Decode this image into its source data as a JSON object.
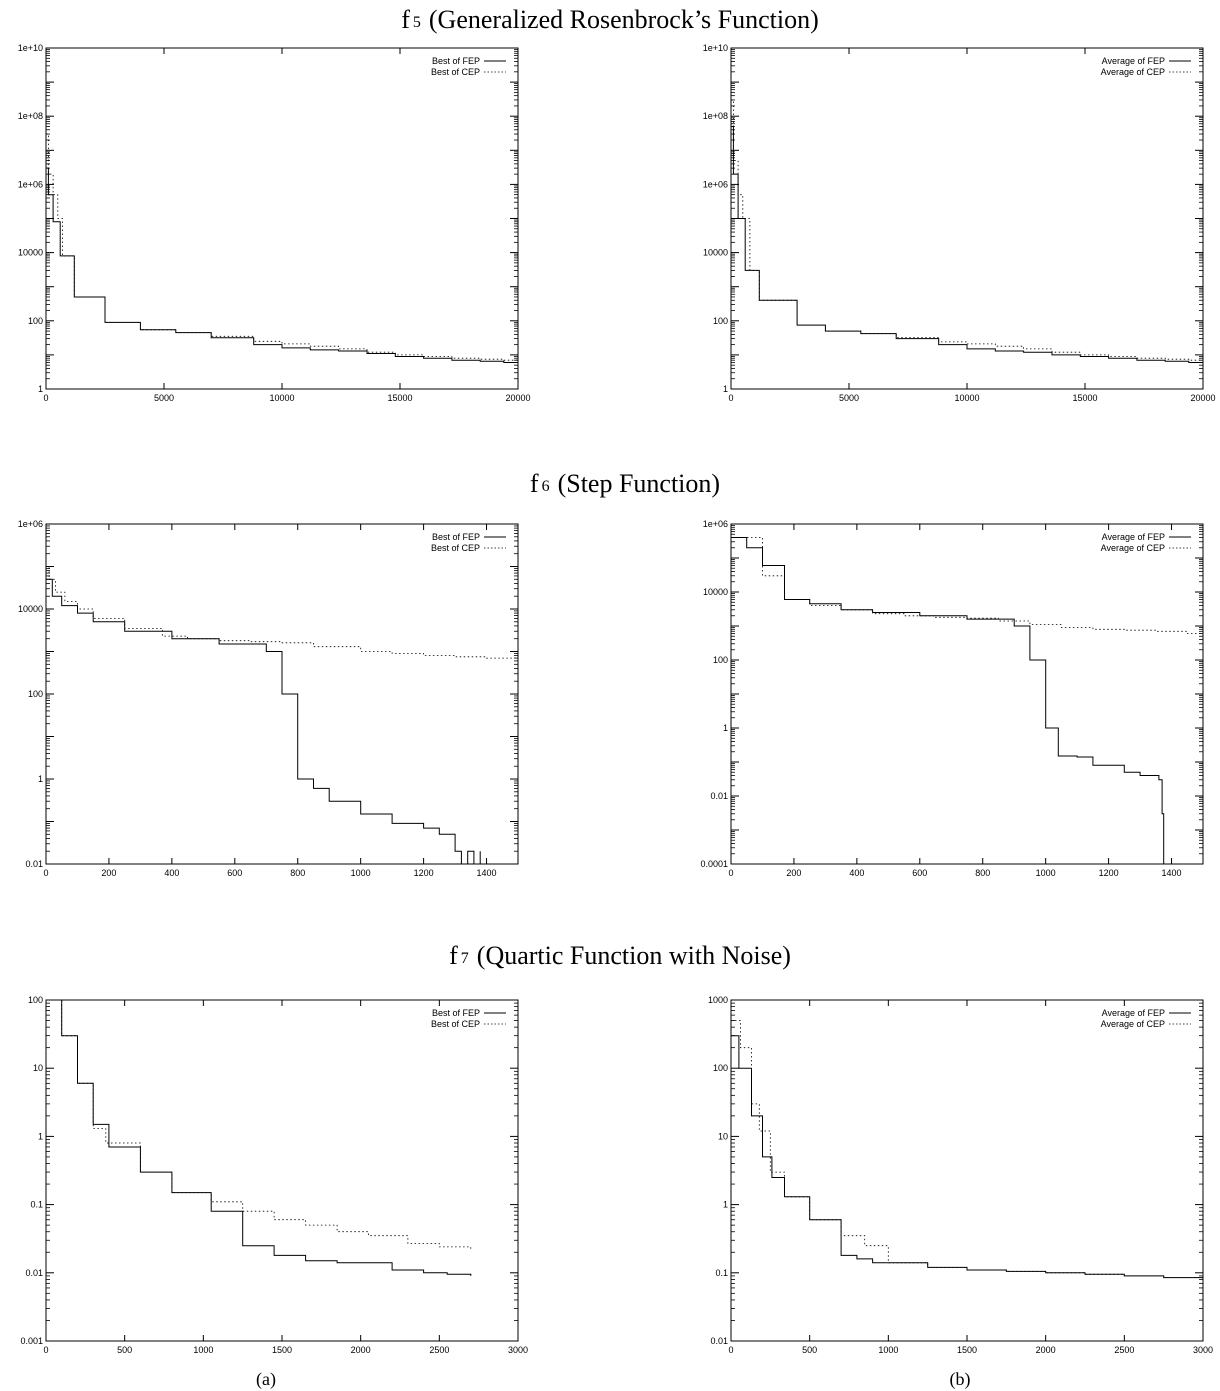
{
  "rows": [
    {
      "function_id": "f",
      "function_sub": "5",
      "function_name": "(Generalized Rosenbrock’s Function)"
    },
    {
      "function_id": "f",
      "function_sub": "6",
      "function_name": "(Step Function)"
    },
    {
      "function_id": "f",
      "function_sub": "7",
      "function_name": "(Quartic Function with Noise)"
    }
  ],
  "captions": [
    "(a)",
    "(b)"
  ],
  "chart_data": [
    {
      "type": "line",
      "panel": "f5-a",
      "xscale": "linear",
      "yscale": "log",
      "xlim": [
        0,
        20000
      ],
      "ylim": [
        1,
        10000000000.0
      ],
      "xticks": [
        0,
        5000,
        10000,
        15000,
        20000
      ],
      "xtick_labels": [
        "0",
        "5000",
        "10000",
        "15000",
        "20000"
      ],
      "yticks": [
        1,
        100,
        10000,
        1000000.0,
        100000000.0,
        10000000000.0
      ],
      "ytick_labels": [
        "1",
        "100",
        "10000",
        "1e+06",
        "1e+08",
        "1e+10"
      ],
      "legend_position": "top-right",
      "series": [
        {
          "name": "Best of FEP",
          "style": "solid",
          "x": [
            0,
            100,
            300,
            600,
            1200,
            2500,
            4000,
            5500,
            7000,
            8800,
            10000,
            11200,
            12400,
            13600,
            14800,
            16000,
            17200,
            18400,
            19400,
            20000
          ],
          "y": [
            3000000.0,
            500000.0,
            80000.0,
            8000,
            500,
            90,
            55,
            45,
            32,
            20,
            16,
            14,
            13,
            11,
            9,
            8,
            7,
            6.5,
            6,
            6
          ]
        },
        {
          "name": "Best of CEP",
          "style": "dotted",
          "x": [
            0,
            100,
            300,
            500,
            700,
            1200,
            2500,
            4000,
            5500,
            7000,
            8800,
            10000,
            11200,
            12400,
            13600,
            14800,
            16000,
            17200,
            18400,
            19400,
            20000
          ],
          "y": [
            30000000.0,
            2000000.0,
            500000.0,
            100000.0,
            8000,
            500,
            90,
            55,
            45,
            35,
            25,
            21,
            18,
            15,
            12,
            10,
            9,
            8,
            7.5,
            7,
            7
          ]
        }
      ]
    },
    {
      "type": "line",
      "panel": "f5-b",
      "xscale": "linear",
      "yscale": "log",
      "xlim": [
        0,
        20000
      ],
      "ylim": [
        1,
        10000000000.0
      ],
      "xticks": [
        0,
        5000,
        10000,
        15000,
        20000
      ],
      "xtick_labels": [
        "0",
        "5000",
        "10000",
        "15000",
        "20000"
      ],
      "yticks": [
        1,
        100,
        10000,
        1000000.0,
        100000000.0,
        10000000000.0
      ],
      "ytick_labels": [
        "1",
        "100",
        "10000",
        "1e+06",
        "1e+08",
        "1e+10"
      ],
      "legend_position": "top-right",
      "series": [
        {
          "name": "Average of FEP",
          "style": "solid",
          "x": [
            0,
            100,
            300,
            600,
            1200,
            2800,
            4000,
            5500,
            7000,
            8800,
            10000,
            11200,
            12400,
            13600,
            14800,
            16000,
            17200,
            18400,
            19400,
            20000
          ],
          "y": [
            50000000.0,
            2000000.0,
            100000.0,
            3000,
            400,
            75,
            50,
            42,
            30,
            20,
            15,
            13,
            12,
            10,
            9,
            8,
            7,
            6.5,
            6,
            6
          ]
        },
        {
          "name": "Average of CEP",
          "style": "dotted",
          "x": [
            0,
            100,
            300,
            500,
            800,
            1200,
            2800,
            4000,
            5500,
            7000,
            8800,
            10000,
            11200,
            12400,
            13600,
            14800,
            16000,
            17200,
            18400,
            19400,
            20000
          ],
          "y": [
            300000000.0,
            5000000.0,
            500000.0,
            100000.0,
            3000,
            400,
            75,
            50,
            42,
            32,
            24,
            21,
            18,
            15,
            12,
            10,
            9,
            8,
            7.5,
            7,
            7
          ]
        }
      ]
    },
    {
      "type": "line",
      "panel": "f6-a",
      "xscale": "linear",
      "yscale": "log",
      "xlim": [
        0,
        1500
      ],
      "ylim": [
        0.01,
        1000000.0
      ],
      "xticks": [
        0,
        200,
        400,
        600,
        800,
        1000,
        1200,
        1400
      ],
      "xtick_labels": [
        "0",
        "200",
        "400",
        "600",
        "800",
        "1000",
        "1200",
        "1400"
      ],
      "yticks": [
        0.01,
        1,
        100,
        10000,
        1000000.0
      ],
      "ytick_labels": [
        "0.01",
        "1",
        "100",
        "10000",
        "1e+06"
      ],
      "legend_position": "top-right",
      "series": [
        {
          "name": "Best of FEP",
          "style": "solid",
          "x": [
            0,
            20,
            50,
            100,
            150,
            250,
            400,
            550,
            700,
            750,
            800,
            850,
            900,
            1000,
            1100,
            1200,
            1250,
            1300,
            1320,
            1340,
            1360,
            1380
          ],
          "y": [
            50000,
            20000,
            12000,
            8000,
            5000,
            3000,
            2000,
            1500,
            1000,
            100,
            1,
            0.6,
            0.3,
            0.15,
            0.09,
            0.07,
            0.05,
            0.02,
            0.01,
            0.02,
            0.01,
            0.02
          ]
        },
        {
          "name": "Best of CEP",
          "style": "dotted",
          "x": [
            0,
            10,
            30,
            60,
            100,
            150,
            250,
            370,
            450,
            550,
            650,
            750,
            850,
            1000,
            1100,
            1200,
            1300,
            1400,
            1500
          ],
          "y": [
            100000,
            50000,
            25000,
            15000,
            10000,
            6000,
            3500,
            2300,
            2000,
            1800,
            1700,
            1600,
            1300,
            1000,
            900,
            800,
            750,
            700,
            600
          ]
        }
      ]
    },
    {
      "type": "line",
      "panel": "f6-b",
      "xscale": "linear",
      "yscale": "log",
      "xlim": [
        0,
        1500
      ],
      "ylim": [
        0.0001,
        1000000.0
      ],
      "xticks": [
        0,
        200,
        400,
        600,
        800,
        1000,
        1200,
        1400
      ],
      "xtick_labels": [
        "0",
        "200",
        "400",
        "600",
        "800",
        "1000",
        "1200",
        "1400"
      ],
      "yticks": [
        0.0001,
        0.01,
        1,
        100,
        10000,
        1000000.0
      ],
      "ytick_labels": [
        "0.0001",
        "0.01",
        "1",
        "100",
        "10000",
        "1e+06"
      ],
      "legend_position": "top-right",
      "series": [
        {
          "name": "Average of FEP",
          "style": "solid",
          "x": [
            0,
            50,
            100,
            170,
            250,
            350,
            450,
            600,
            750,
            900,
            950,
            1000,
            1040,
            1100,
            1150,
            1200,
            1250,
            1300,
            1360,
            1370,
            1375
          ],
          "y": [
            400000,
            200000,
            60000,
            6000,
            4500,
            3000,
            2500,
            2000,
            1600,
            1000,
            100,
            1,
            0.15,
            0.14,
            0.08,
            0.08,
            0.05,
            0.04,
            0.03,
            0.003,
            0.0001
          ]
        },
        {
          "name": "Average of CEP",
          "style": "dotted",
          "x": [
            0,
            100,
            170,
            250,
            350,
            450,
            550,
            650,
            750,
            850,
            950,
            1050,
            1150,
            1250,
            1350,
            1450,
            1500
          ],
          "y": [
            400000,
            30000,
            6000,
            4000,
            3000,
            2300,
            2000,
            1800,
            1700,
            1400,
            1100,
            900,
            800,
            750,
            700,
            600,
            600
          ]
        }
      ]
    },
    {
      "type": "line",
      "panel": "f7-a",
      "xscale": "linear",
      "yscale": "log",
      "xlim": [
        0,
        3000
      ],
      "ylim": [
        0.001,
        100
      ],
      "xticks": [
        0,
        500,
        1000,
        1500,
        2000,
        2500,
        3000
      ],
      "xtick_labels": [
        "0",
        "500",
        "1000",
        "1500",
        "2000",
        "2500",
        "3000"
      ],
      "yticks": [
        0.001,
        0.01,
        0.1,
        1,
        10,
        100
      ],
      "ytick_labels": [
        "0.001",
        "0.01",
        "0.1",
        "1",
        "10",
        "100"
      ],
      "legend_position": "top-right",
      "series": [
        {
          "name": "Best of FEP",
          "style": "solid",
          "x": [
            0,
            100,
            200,
            300,
            400,
            600,
            800,
            1050,
            1250,
            1450,
            1650,
            1850,
            2200,
            2400,
            2550,
            2700
          ],
          "y": [
            100,
            30,
            6,
            1.5,
            0.7,
            0.3,
            0.15,
            0.08,
            0.025,
            0.018,
            0.015,
            0.014,
            0.011,
            0.01,
            0.0095,
            0.009
          ]
        },
        {
          "name": "Best of CEP",
          "style": "dotted",
          "x": [
            0,
            100,
            200,
            300,
            380,
            600,
            800,
            1050,
            1250,
            1450,
            1650,
            1850,
            2050,
            2300,
            2500,
            2700
          ],
          "y": [
            100,
            30,
            6,
            1.3,
            0.8,
            0.3,
            0.15,
            0.11,
            0.08,
            0.06,
            0.05,
            0.04,
            0.035,
            0.027,
            0.024,
            0.021
          ]
        }
      ]
    },
    {
      "type": "line",
      "panel": "f7-b",
      "xscale": "linear",
      "yscale": "log",
      "xlim": [
        0,
        3000
      ],
      "ylim": [
        0.01,
        1000
      ],
      "xticks": [
        0,
        500,
        1000,
        1500,
        2000,
        2500,
        3000
      ],
      "xtick_labels": [
        "0",
        "500",
        "1000",
        "1500",
        "2000",
        "2500",
        "3000"
      ],
      "yticks": [
        0.01,
        0.1,
        1,
        10,
        100,
        1000
      ],
      "ytick_labels": [
        "0.01",
        "0.1",
        "1",
        "10",
        "100",
        "1000"
      ],
      "legend_position": "top-right",
      "series": [
        {
          "name": "Average of FEP",
          "style": "solid",
          "x": [
            0,
            50,
            130,
            200,
            260,
            340,
            500,
            700,
            800,
            900,
            1250,
            1500,
            1750,
            2000,
            2250,
            2500,
            2750,
            3000
          ],
          "y": [
            300,
            100,
            20,
            5,
            2.5,
            1.3,
            0.6,
            0.18,
            0.16,
            0.14,
            0.12,
            0.11,
            0.105,
            0.1,
            0.095,
            0.09,
            0.085,
            0.085
          ]
        },
        {
          "name": "Average of CEP",
          "style": "dotted",
          "x": [
            0,
            60,
            130,
            180,
            250,
            340,
            500,
            700,
            850,
            1000,
            1250,
            1500,
            1750,
            2000,
            2250,
            2500,
            2750,
            3000
          ],
          "y": [
            500,
            200,
            30,
            12,
            3,
            1.3,
            0.6,
            0.35,
            0.25,
            0.14,
            0.12,
            0.11,
            0.105,
            0.1,
            0.095,
            0.09,
            0.085,
            0.085
          ]
        }
      ]
    }
  ]
}
